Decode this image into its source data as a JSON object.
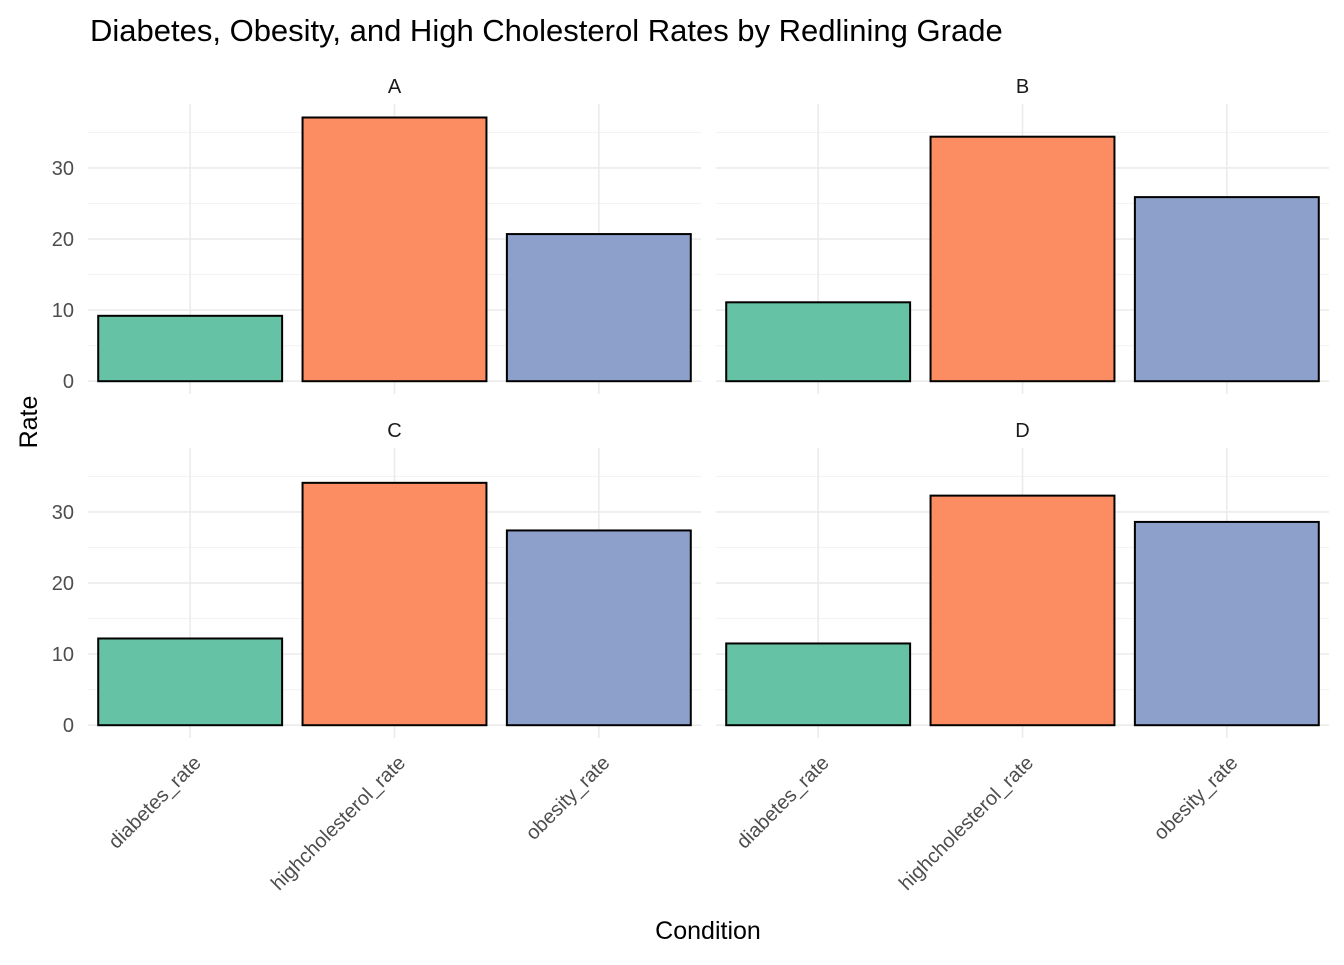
{
  "chart_data": {
    "type": "bar",
    "title": "Diabetes, Obesity, and High Cholesterol Rates by Redlining Grade",
    "xlabel": "Condition",
    "ylabel": "Rate",
    "categories": [
      "diabetes_rate",
      "highcholesterol_rate",
      "obesity_rate"
    ],
    "colors": [
      "#66c2a5",
      "#fc8d62",
      "#8da0cb"
    ],
    "y_ticks": [
      0,
      10,
      20,
      30
    ],
    "ylim": [
      -1.8,
      39
    ],
    "grid": true,
    "legend": "none",
    "facets": [
      {
        "label": "A",
        "values": [
          9.2,
          37.1,
          20.7
        ]
      },
      {
        "label": "B",
        "values": [
          11.1,
          34.4,
          25.9
        ]
      },
      {
        "label": "C",
        "values": [
          12.2,
          34.1,
          27.4
        ]
      },
      {
        "label": "D",
        "values": [
          11.5,
          32.3,
          28.6
        ]
      }
    ]
  }
}
